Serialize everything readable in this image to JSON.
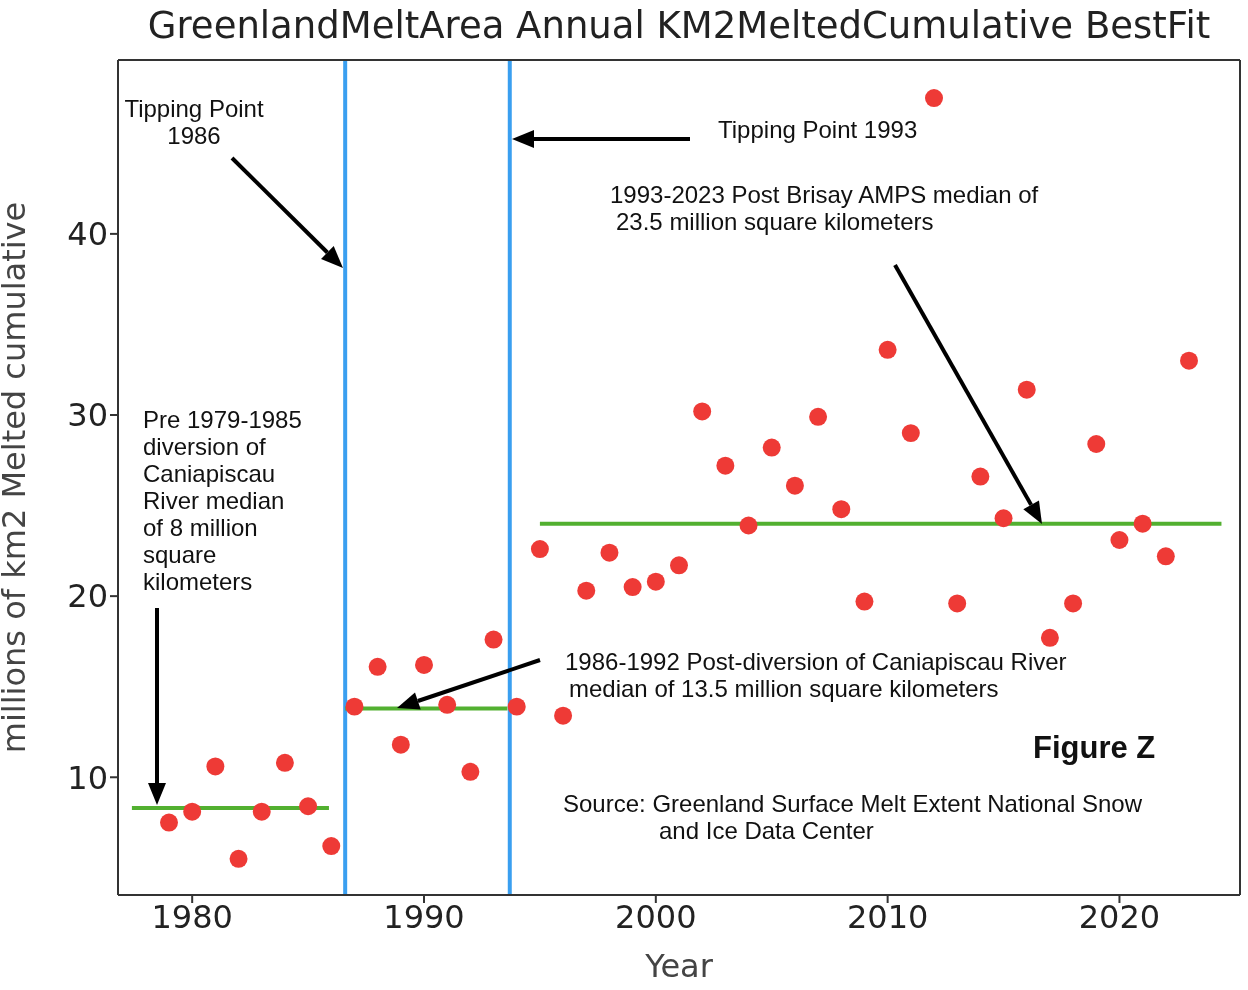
{
  "chart_data": {
    "type": "scatter",
    "title": "GreenlandMeltArea Annual KM2MeltedCumulative BestFit",
    "xlabel": "Year",
    "ylabel": "millions of km2 Melted cumulative",
    "xlim": [
      1976.8,
      2025.2
    ],
    "ylim": [
      3.5,
      49.6
    ],
    "xticks": [
      1980,
      1990,
      2000,
      2010,
      2020
    ],
    "yticks": [
      10,
      20,
      30,
      40
    ],
    "series": [
      {
        "marker": "circle",
        "color": "#ee3a36",
        "x": [
          1979,
          1980,
          1981,
          1982,
          1983,
          1984,
          1985,
          1986,
          1987,
          1988,
          1989,
          1990,
          1991,
          1992,
          1993,
          1994,
          1995,
          1996,
          1997,
          1998,
          1999,
          2000,
          2001,
          2002,
          2003,
          2004,
          2005,
          2006,
          2007,
          2008,
          2009,
          2010,
          2011,
          2012,
          2013,
          2014,
          2015,
          2016,
          2017,
          2018,
          2019,
          2020,
          2021,
          2022,
          2023
        ],
        "values": [
          7.5,
          8.1,
          10.6,
          5.5,
          8.1,
          10.8,
          8.4,
          6.2,
          13.9,
          16.1,
          11.8,
          16.2,
          14.0,
          10.3,
          17.6,
          13.9,
          22.6,
          13.4,
          20.3,
          22.4,
          20.5,
          20.8,
          21.7,
          30.2,
          27.2,
          23.9,
          28.2,
          26.1,
          29.9,
          24.8,
          19.7,
          33.6,
          29.0,
          47.5,
          19.6,
          26.6,
          24.3,
          31.4,
          17.7,
          19.6,
          28.4,
          23.1,
          24.0,
          22.2,
          33.0
        ]
      },
      {
        "type": "line",
        "marker": "none",
        "color": "#52b030",
        "x": [
          1977.4,
          1985.9
        ],
        "values": [
          8.3,
          8.3
        ]
      },
      {
        "type": "line",
        "marker": "none",
        "color": "#52b030",
        "x": [
          1986.6,
          1993.6
        ],
        "values": [
          13.8,
          13.8
        ]
      },
      {
        "type": "line",
        "marker": "none",
        "color": "#52b030",
        "x": [
          1995.0,
          2024.4
        ],
        "values": [
          24.0,
          24.0
        ]
      }
    ],
    "ref_lines": [
      {
        "axis": "x",
        "value": 1986.6,
        "color": "#3a9ff0"
      },
      {
        "axis": "x",
        "value": 1993.7,
        "color": "#3a9ff0"
      }
    ],
    "annotations": [
      "Tipping Point 1986",
      "Tipping Point 1993",
      "1993-2023 Post Brisay AMPS median of 23.5 million square kilometers",
      "Pre 1979-1985 diversion of Caniapiscau River median of 8 million square kilometers",
      "1986-1992 Post-diversion of Caniapiscau River median of 13.5 million square kilometers",
      "Figure Z",
      "Source: Greenland Surface Melt Extent National Snow and Ice Data Center"
    ]
  }
}
